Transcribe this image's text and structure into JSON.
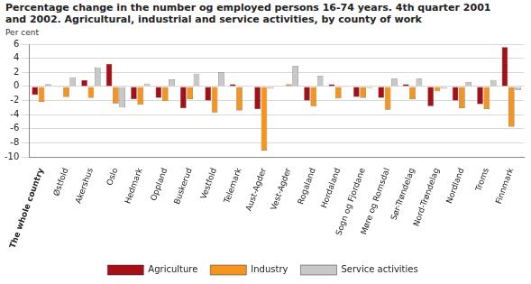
{
  "chart_data": {
    "type": "bar",
    "title": "Percentage change in the number og employed persons 16-74 years. 4th quarter 2001 and 2002. Agricultural, industrial and service activities, by county of work",
    "y_label": "Per cent",
    "categories": [
      "The whole country",
      "Østfold",
      "Akershus",
      "Oslo",
      "Hedmark",
      "Oppland",
      "Buskerud",
      "Vestfold",
      "Telemark",
      "Aust-Agder",
      "Vest-Agder",
      "Rogaland",
      "Hordaland",
      "Sogn og Fjordane",
      "Møre og Romsdal",
      "Sør-Trøndelag",
      "Nord-Trøndelag",
      "Nordland",
      "Troms",
      "Finnmark"
    ],
    "series": [
      {
        "name": "Agriculture",
        "color": "#a50f15",
        "values": [
          -1.2,
          -0.1,
          0.9,
          3.2,
          -1.8,
          -1.6,
          -3.1,
          -2.0,
          0.3,
          -3.2,
          0.0,
          -2.0,
          0.3,
          -1.5,
          -1.6,
          0.3,
          -2.8,
          -2.0,
          -2.5,
          5.6
        ]
      },
      {
        "name": "Industry",
        "color": "#f7941d",
        "values": [
          -2.2,
          -1.5,
          -1.6,
          -2.4,
          -2.6,
          -2.1,
          -1.8,
          -3.7,
          -3.4,
          -9.1,
          0.3,
          -2.8,
          -1.7,
          -1.6,
          -3.3,
          -1.8,
          -0.7,
          -3.1,
          -3.2,
          -5.7
        ]
      },
      {
        "name": "Service activities",
        "color": "#c8c8c8",
        "values": [
          0.3,
          1.3,
          2.7,
          -3.0,
          0.4,
          1.0,
          1.8,
          2.0,
          0.0,
          -0.3,
          2.9,
          1.5,
          -0.1,
          -0.2,
          1.1,
          1.1,
          -0.3,
          0.6,
          0.9,
          -0.5
        ]
      }
    ],
    "ylim": [
      -10,
      6
    ],
    "yticks": [
      -10,
      -8,
      -6,
      -4,
      -2,
      0,
      2,
      4,
      6
    ],
    "grid": true,
    "legend": "bottom"
  }
}
